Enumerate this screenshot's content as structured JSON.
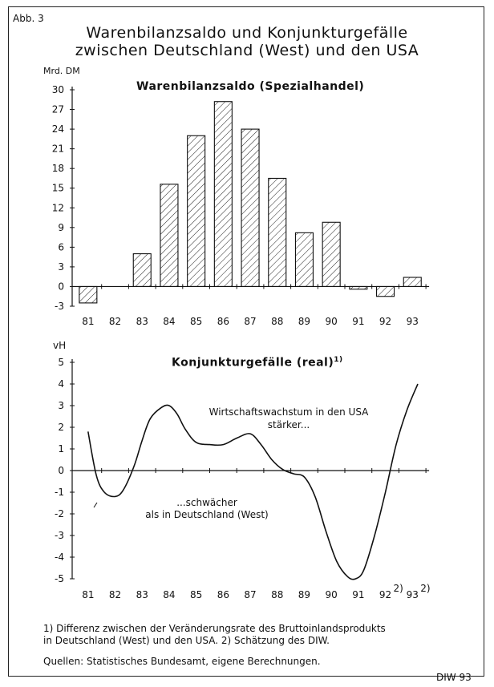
{
  "figure_label": "Abb. 3",
  "title_line1": "Warenbilanzsaldo und Konjunkturgefälle",
  "title_line2": "zwischen Deutschland (West) und den USA",
  "footnote_line1": "1) Differenz zwischen der Veränderungsrate des Bruttoinlandsprodukts",
  "footnote_line2": "in Deutschland (West) und den USA. 2) Schätzung des DIW.",
  "source": "Quellen: Statistisches Bundesamt, eigene Berechnungen.",
  "credit": "DIW 93",
  "chart_data": [
    {
      "type": "bar",
      "title": "Warenbilanzsaldo (Spezialhandel)",
      "ylabel": "Mrd. DM",
      "categories": [
        "81",
        "82",
        "83",
        "84",
        "85",
        "86",
        "87",
        "88",
        "89",
        "90",
        "91",
        "92",
        "93"
      ],
      "values": [
        -2.5,
        0,
        5,
        15.6,
        23,
        28.2,
        24,
        16.5,
        8.2,
        9.8,
        -0.4,
        -1.5,
        1.4
      ],
      "ylim": [
        -3,
        30
      ],
      "yticks": [
        "-3",
        "0",
        "3",
        "6",
        "9",
        "12",
        "15",
        "18",
        "21",
        "24",
        "27",
        "30"
      ],
      "fill": "hatched",
      "grid": false
    },
    {
      "type": "line",
      "title": "Konjunkturgefälle (real)",
      "title_sup": "1)",
      "ylabel": "vH",
      "categories": [
        "81",
        "82",
        "83",
        "84",
        "85",
        "86",
        "87",
        "88",
        "89",
        "90",
        "91",
        "92",
        "93"
      ],
      "category_sup": {
        "92": "2)",
        "93": "2)"
      },
      "ylim": [
        -5,
        5
      ],
      "yticks": [
        "-5",
        "-4",
        "-3",
        "-2",
        "-1",
        "0",
        "1",
        "2",
        "3",
        "4",
        "5"
      ],
      "x": [
        81,
        81.3,
        81.6,
        82,
        82.3,
        82.7,
        83,
        83.3,
        83.7,
        84,
        84.3,
        84.6,
        85,
        85.5,
        86,
        86.5,
        87,
        87.4,
        87.8,
        88.2,
        88.6,
        89,
        89.4,
        89.8,
        90.2,
        90.6,
        90.9,
        91.2,
        91.6,
        92,
        92.4,
        92.8,
        93.2
      ],
      "y": [
        1.8,
        -0.2,
        -1,
        -1.2,
        -0.9,
        0.2,
        1.4,
        2.4,
        2.9,
        3.0,
        2.6,
        1.9,
        1.3,
        1.2,
        1.2,
        1.5,
        1.7,
        1.2,
        0.5,
        0.05,
        -0.15,
        -0.3,
        -1.2,
        -2.8,
        -4.2,
        -4.9,
        -5.0,
        -4.6,
        -3.0,
        -1.0,
        1.2,
        2.8,
        4.0
      ],
      "annotations": [
        "Wirtschaftswachstum in den USA",
        "stärker...",
        "...schwächer",
        "als in Deutschland (West)"
      ],
      "grid": false
    }
  ]
}
